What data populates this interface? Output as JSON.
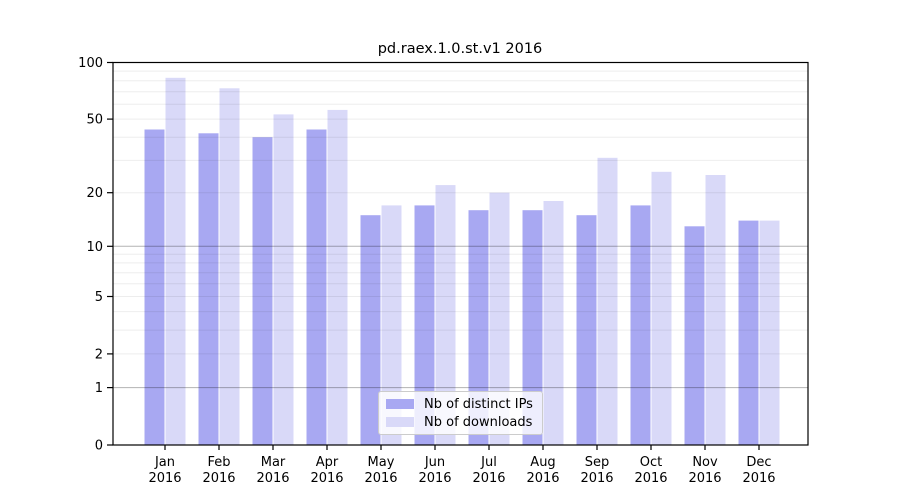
{
  "title": "pd.raex.1.0.st.v1 2016",
  "chart_data": {
    "type": "bar",
    "title": "pd.raex.1.0.st.v1 2016",
    "categories": [
      "Jan",
      "Feb",
      "Mar",
      "Apr",
      "May",
      "Jun",
      "Jul",
      "Aug",
      "Sep",
      "Oct",
      "Nov",
      "Dec"
    ],
    "year_label": "2016",
    "series": [
      {
        "name": "Nb of distinct IPs",
        "color": "#a8a8f2",
        "values": [
          44,
          42,
          40,
          44,
          15,
          17,
          16,
          16,
          15,
          17,
          13,
          14
        ]
      },
      {
        "name": "Nb of downloads",
        "color": "#d9d9f8",
        "values": [
          83,
          73,
          53,
          56,
          17,
          22,
          20,
          18,
          31,
          26,
          25,
          14
        ]
      }
    ],
    "xlabel": "",
    "ylabel": "",
    "y_ticks": [
      0,
      1,
      2,
      5,
      10,
      20,
      50,
      100
    ],
    "ylim": [
      0,
      100
    ],
    "yscale": "log(1+x)",
    "grid": "horizontal; major lines at 1,10,100; minor lines at 2-9 and 20-90",
    "legend_position": "lower center",
    "colors": {
      "background": "#ffffff",
      "axis": "#000000",
      "major_grid": "rgba(0,0,0,0.30)",
      "minor_grid": "rgba(0,0,0,0.07)"
    }
  }
}
